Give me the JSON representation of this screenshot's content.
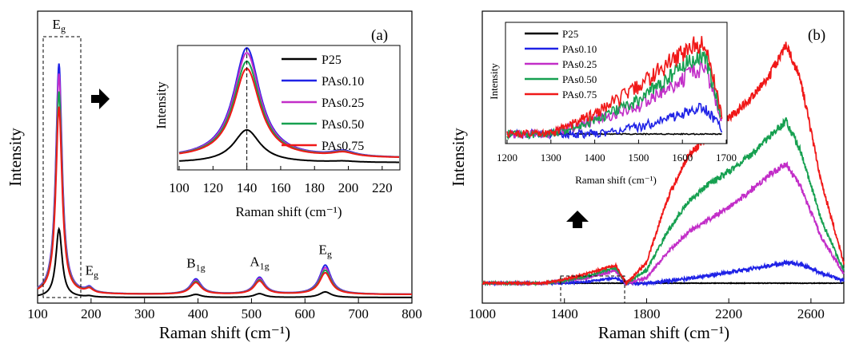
{
  "figure": {
    "panel_a_tag": "(a)",
    "panel_b_tag": "(b)"
  },
  "chart_data": [
    {
      "panel": "(a)",
      "type": "line",
      "xlabel": "Raman shift (cm⁻¹)",
      "ylabel": "Intensity",
      "xlim": [
        100,
        800
      ],
      "xticks": [
        100,
        200,
        300,
        400,
        500,
        600,
        700,
        800
      ],
      "yticks": [],
      "legend_position": "top-right (inside inset)",
      "peak_labels": [
        {
          "base": "E",
          "sub": "g",
          "x": 140
        },
        {
          "base": "E",
          "sub": "g",
          "x": 197
        },
        {
          "base": "B",
          "sub": "1g",
          "x": 396
        },
        {
          "base": "A",
          "sub": "1g",
          "x": 515
        },
        {
          "base": "E",
          "sub": "g",
          "x": 638
        }
      ],
      "peaks": [
        {
          "center": 140,
          "width": 7
        },
        {
          "center": 197,
          "width": 8
        },
        {
          "center": 396,
          "width": 12
        },
        {
          "center": 515,
          "width": 12
        },
        {
          "center": 638,
          "width": 13
        }
      ],
      "series": [
        {
          "name": "P25",
          "color": "#000000",
          "amplitudes": [
            0.27,
            0.004,
            0.012,
            0.015,
            0.022
          ],
          "baseline": 0.0
        },
        {
          "name": "PAs0.10",
          "color": "#1f22e6",
          "amplitudes": [
            0.91,
            0.02,
            0.06,
            0.066,
            0.115
          ],
          "baseline": 0.012
        },
        {
          "name": "PAs0.25",
          "color": "#c22ec8",
          "amplitudes": [
            0.87,
            0.018,
            0.055,
            0.062,
            0.105
          ],
          "baseline": 0.012
        },
        {
          "name": "PAs0.50",
          "color": "#16a050",
          "amplitudes": [
            0.8,
            0.017,
            0.05,
            0.056,
            0.095
          ],
          "baseline": 0.012
        },
        {
          "name": "PAs0.75",
          "color": "#f01818",
          "amplitudes": [
            0.74,
            0.016,
            0.046,
            0.052,
            0.085
          ],
          "baseline": 0.012
        }
      ],
      "inset": {
        "xlabel": "Raman shift (cm⁻¹)",
        "ylabel": "Intensity",
        "xlim": [
          100,
          230
        ],
        "xticks": [
          100,
          120,
          140,
          160,
          180,
          200,
          220
        ],
        "marker_x": 140
      }
    },
    {
      "panel": "(b)",
      "type": "line",
      "xlabel": "Raman shift (cm⁻¹)",
      "ylabel": "Intensity",
      "xlim": [
        1000,
        2760
      ],
      "xticks": [
        1000,
        1400,
        1800,
        2200,
        2600
      ],
      "yticks": [],
      "legend_position": "top-left (inside inset)",
      "series": [
        {
          "name": "P25",
          "color": "#000000",
          "x": [
            1000,
            1400,
            1700,
            2000,
            2400,
            2600,
            2760
          ],
          "y": [
            0.0,
            0.0,
            0.0,
            0.0,
            0.0,
            0.0,
            0.0
          ]
        },
        {
          "name": "PAs0.10",
          "color": "#1f22e6",
          "x": [
            1000,
            1300,
            1400,
            1500,
            1600,
            1650,
            1700,
            1800,
            1900,
            2000,
            2100,
            2200,
            2300,
            2400,
            2480,
            2550,
            2650,
            2760
          ],
          "y": [
            0.0,
            0.0,
            0.0,
            0.005,
            0.015,
            0.02,
            0.0,
            0.0,
            0.008,
            0.018,
            0.03,
            0.042,
            0.055,
            0.07,
            0.08,
            0.075,
            0.04,
            0.01
          ]
        },
        {
          "name": "PAs0.25",
          "color": "#c22ec8",
          "x": [
            1000,
            1300,
            1400,
            1500,
            1600,
            1650,
            1700,
            1800,
            1900,
            2000,
            2100,
            2200,
            2300,
            2400,
            2480,
            2550,
            2650,
            2760
          ],
          "y": [
            0.0,
            0.0,
            0.01,
            0.02,
            0.04,
            0.05,
            0.0,
            0.02,
            0.12,
            0.2,
            0.25,
            0.3,
            0.36,
            0.43,
            0.47,
            0.38,
            0.18,
            0.04
          ]
        },
        {
          "name": "PAs0.50",
          "color": "#16a050",
          "x": [
            1000,
            1300,
            1400,
            1500,
            1600,
            1650,
            1700,
            1800,
            1900,
            2000,
            2100,
            2200,
            2300,
            2400,
            2480,
            2550,
            2650,
            2760
          ],
          "y": [
            0.0,
            0.0,
            0.01,
            0.025,
            0.05,
            0.06,
            0.0,
            0.05,
            0.2,
            0.32,
            0.39,
            0.44,
            0.5,
            0.58,
            0.64,
            0.52,
            0.25,
            0.05
          ]
        },
        {
          "name": "PAs0.75",
          "color": "#f01818",
          "x": [
            1000,
            1300,
            1400,
            1500,
            1600,
            1650,
            1700,
            1800,
            1900,
            2000,
            2100,
            2200,
            2300,
            2400,
            2480,
            2550,
            2650,
            2760
          ],
          "y": [
            0.0,
            0.0,
            0.015,
            0.035,
            0.06,
            0.07,
            0.0,
            0.08,
            0.33,
            0.5,
            0.58,
            0.65,
            0.72,
            0.82,
            0.94,
            0.8,
            0.4,
            0.08
          ]
        }
      ],
      "inset": {
        "xlabel": "Raman shift (cm⁻¹)",
        "ylabel": "Intensity",
        "xlim": [
          1200,
          1700
        ],
        "xticks": [
          1200,
          1300,
          1400,
          1500,
          1600,
          1700
        ]
      }
    }
  ]
}
